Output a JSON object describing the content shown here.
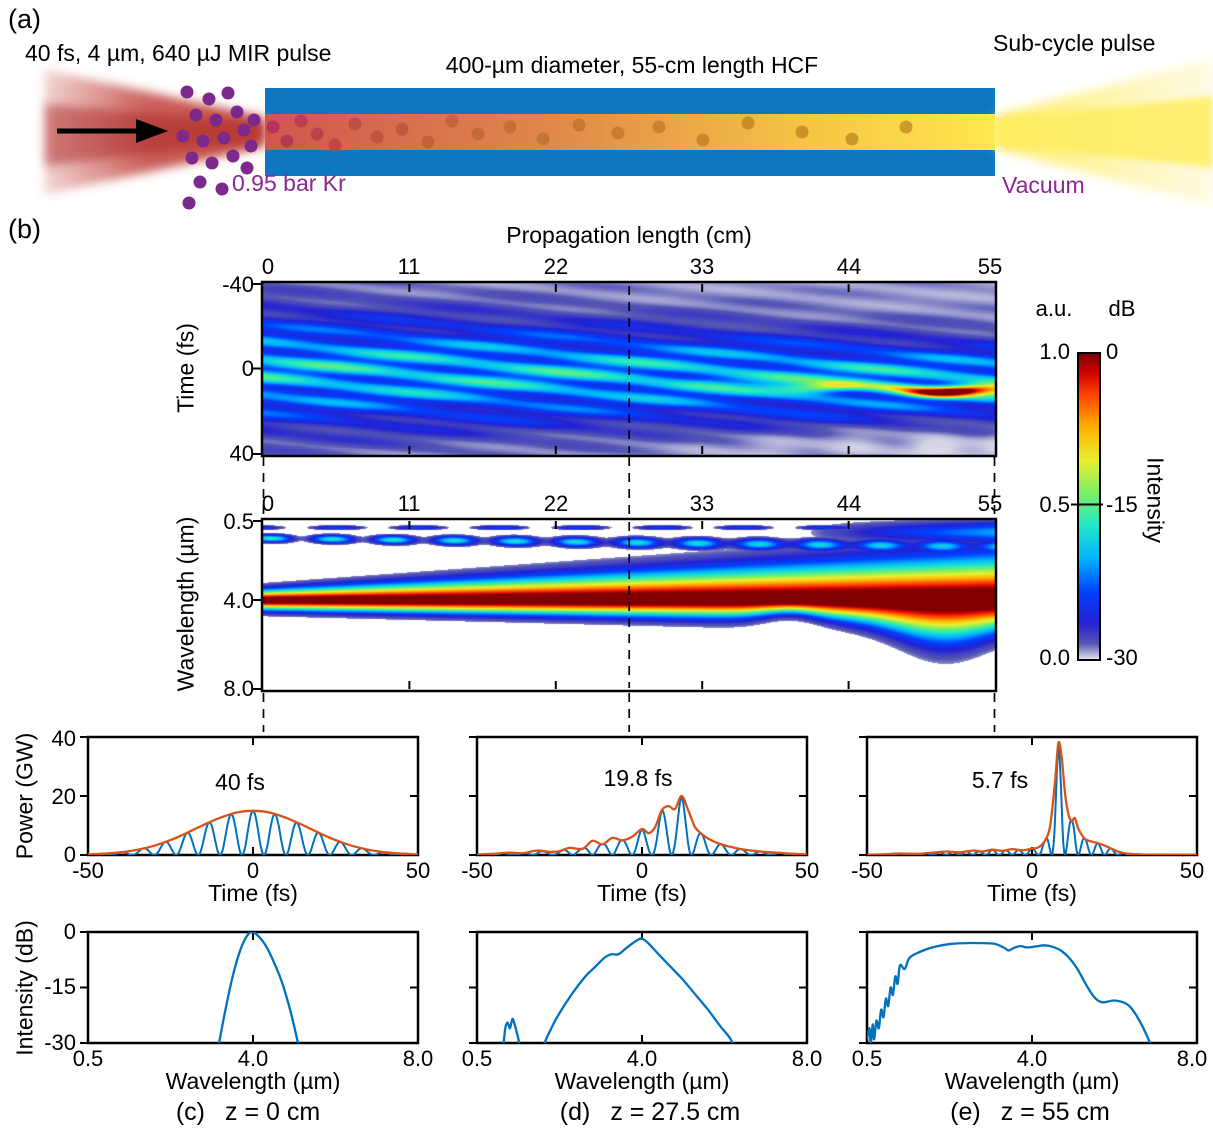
{
  "panel_a": {
    "label": "(a)",
    "pulse_label": "40 fs, 4 µm, 640 µJ MIR pulse",
    "fiber_label": "400-µm diameter, 55-cm length HCF",
    "output_label": "Sub-cycle pulse",
    "gas_label": "0.95 bar Kr",
    "vacuum_label": "Vacuum",
    "colors": {
      "fiber_blue": "#0d78bf",
      "gas_purple": "#8b2791"
    }
  },
  "panel_b": {
    "label": "(b)",
    "xaxis_title": "Propagation length (cm)",
    "xticks": [
      "0",
      "11",
      "22",
      "33",
      "44",
      "55"
    ],
    "time_map": {
      "ylabel": "Time (fs)",
      "yticks": [
        "-40",
        "0",
        "40"
      ]
    },
    "wavelength_map": {
      "ylabel": "Wavelength (µm)",
      "yticks": [
        "0.5",
        "4.0",
        "8.0"
      ]
    },
    "colorbar": {
      "left_unit": "a.u.",
      "right_unit": "dB",
      "left_ticks": [
        "1.0",
        "0.5",
        "0.0"
      ],
      "right_ticks": [
        "0",
        "-15",
        "-30"
      ],
      "title": "Intensity"
    }
  },
  "bottom_axes": {
    "power_ylabel": "Power (GW)",
    "power_yticks": [
      "40",
      "20",
      "0"
    ],
    "time_xlabel": "Time (fs)",
    "time_xticks": [
      "-50",
      "0",
      "50"
    ],
    "intensity_ylabel": "Intensity (dB)",
    "intensity_yticks": [
      "0",
      "-15",
      "-30"
    ],
    "wavelength_xlabel": "Wavelength (µm)",
    "wavelength_xticks": [
      "0.5",
      "4.0",
      "8.0"
    ]
  },
  "annotations": {
    "c": "40 fs",
    "d": "19.8 fs",
    "e": "5.7 fs"
  },
  "captions": [
    {
      "label": "(c)",
      "z": "z = 0 cm"
    },
    {
      "label": "(d)",
      "z": "z = 27.5 cm"
    },
    {
      "label": "(e)",
      "z": "z = 55 cm"
    }
  ],
  "chart_data": {
    "colors": {
      "carrier_blue": "#0072bd",
      "envelope_orange": "#d95319"
    },
    "maps": [
      {
        "id": "time_evolution",
        "type": "heatmap",
        "title": "Propagation length (cm)",
        "xlabel": "Propagation length (cm)",
        "ylabel": "Time (fs)",
        "xrange": [
          0,
          55
        ],
        "yrange": [
          -40,
          40
        ],
        "colormap": "jet with light-gray floor",
        "intensity_scale": "a.u. 0-1 / dB -30-0",
        "description": "Broad 40 fs pulse with tilted interference fringes self-compresses; bright red soliton streak forms near t=+8 fs after z=30 cm; pale shock region below the streak at exit."
      },
      {
        "id": "spectral_evolution",
        "type": "heatmap",
        "xlabel": "Propagation length (cm)",
        "ylabel": "Wavelength (µm)",
        "xrange": [
          0,
          55
        ],
        "yrange": [
          0.5,
          8.0
        ],
        "colormap": "jet on white background",
        "description": "Narrow band at 4 µm broadens toward short wavelengths along propagation; dispersive-wave blobs near 0.8-1.2 µm; long-wavelength lobe appears near z=45-55 cm."
      }
    ],
    "power_time": {
      "type": "line",
      "xlabel": "Time (fs)",
      "ylabel": "Power (GW)",
      "xlim": [
        -50,
        50
      ],
      "ylim": [
        0,
        40
      ],
      "panels": [
        {
          "id": "c",
          "z": "z = 0 cm",
          "duration": "40 fs",
          "carrier_period_fs": 6.65,
          "carrier_center_fs": 0,
          "envelope_t": [
            -50,
            -45,
            -40,
            -35,
            -30,
            -25,
            -20,
            -15,
            -10,
            -5,
            0,
            5,
            10,
            15,
            20,
            25,
            30,
            35,
            40,
            45,
            50
          ],
          "envelope_gw": [
            0.2,
            0.45,
            0.93,
            1.78,
            3.13,
            5.05,
            7.5,
            10.2,
            12.6,
            14.4,
            15,
            14.4,
            12.6,
            10.2,
            7.5,
            5.05,
            3.13,
            1.78,
            0.93,
            0.45,
            0.2
          ]
        },
        {
          "id": "d",
          "z": "z = 27.5 cm",
          "duration": "19.8 fs",
          "carrier_period_fs": 6.0,
          "carrier_center_fs": 12,
          "envelope_t": [
            -50,
            -45,
            -40,
            -36,
            -32,
            -28,
            -25,
            -22,
            -18,
            -15,
            -12,
            -9,
            -6,
            -3,
            0,
            2,
            4,
            6,
            8,
            10,
            12,
            14,
            16,
            18,
            20,
            23,
            26,
            30,
            34,
            38,
            42,
            46,
            50
          ],
          "envelope_gw": [
            0.15,
            0.4,
            0.8,
            0.6,
            1.5,
            1.1,
            1.3,
            2.4,
            2.1,
            4.8,
            3.6,
            5.8,
            5.0,
            6.2,
            8.8,
            7.4,
            9.5,
            15.2,
            16.6,
            15.6,
            20,
            15.2,
            9.6,
            7.2,
            5.6,
            4.0,
            3.0,
            2.0,
            1.4,
            1.0,
            0.7,
            0.4,
            0.2
          ]
        },
        {
          "id": "e",
          "z": "z = 55 cm",
          "duration": "5.7 fs",
          "carrier_period_fs": 4.0,
          "carrier_center_fs": 8,
          "envelope_t": [
            -50,
            -45,
            -40,
            -35,
            -30,
            -26,
            -22,
            -18,
            -15,
            -12,
            -9,
            -6,
            -3,
            0,
            2,
            4,
            5.5,
            7,
            8,
            9,
            10,
            11,
            12,
            13,
            14,
            16,
            18,
            20,
            22,
            24,
            26,
            28,
            31,
            35,
            40,
            45,
            50
          ],
          "envelope_gw": [
            0.1,
            0.25,
            0.5,
            0.4,
            0.8,
            1.2,
            0.9,
            1.5,
            1.2,
            1.8,
            1.4,
            2.0,
            1.6,
            2.2,
            2.6,
            5,
            10,
            25,
            38,
            33,
            21,
            14,
            11.5,
            12.5,
            9,
            5.5,
            4.6,
            4.0,
            3.2,
            2.2,
            1.2,
            0.6,
            0.3,
            0.15,
            0.1,
            0.05,
            0.03
          ]
        }
      ]
    },
    "spectra": {
      "type": "line",
      "xlabel": "Wavelength (µm)",
      "ylabel": "Intensity (dB)",
      "xlim": [
        0.5,
        8.0
      ],
      "ylim": [
        -30,
        0
      ],
      "panels": [
        {
          "id": "c",
          "z": "z = 0 cm",
          "points": [
            [
              3.25,
              -32
            ],
            [
              3.4,
              -22
            ],
            [
              3.55,
              -13
            ],
            [
              3.7,
              -6
            ],
            [
              3.85,
              -1.5
            ],
            [
              3.97,
              0
            ],
            [
              4.1,
              -0.8
            ],
            [
              4.3,
              -3.5
            ],
            [
              4.5,
              -8
            ],
            [
              4.7,
              -13.5
            ],
            [
              4.9,
              -21
            ],
            [
              5.05,
              -28
            ],
            [
              5.15,
              -33
            ]
          ]
        },
        {
          "id": "d",
          "z": "z = 27.5 cm",
          "points": [
            [
              1.05,
              -32
            ],
            [
              1.1,
              -26
            ],
            [
              1.15,
              -24.5
            ],
            [
              1.2,
              -26
            ],
            [
              1.25,
              -23.5
            ],
            [
              1.3,
              -25
            ],
            [
              1.38,
              -29
            ],
            [
              1.45,
              -33
            ],
            [
              1.8,
              -33
            ],
            [
              2.0,
              -28
            ],
            [
              2.2,
              -23
            ],
            [
              2.5,
              -17
            ],
            [
              2.8,
              -12
            ],
            [
              3.0,
              -9.5
            ],
            [
              3.2,
              -7
            ],
            [
              3.35,
              -6
            ],
            [
              3.5,
              -6
            ],
            [
              3.7,
              -4
            ],
            [
              3.9,
              -2.2
            ],
            [
              4.0,
              -1.8
            ],
            [
              4.15,
              -3
            ],
            [
              4.4,
              -6
            ],
            [
              4.7,
              -9.5
            ],
            [
              5.0,
              -13
            ],
            [
              5.3,
              -17
            ],
            [
              5.6,
              -21
            ],
            [
              5.9,
              -25.5
            ],
            [
              6.15,
              -29
            ],
            [
              6.3,
              -33
            ]
          ]
        },
        {
          "id": "e",
          "z": "z = 55 cm",
          "points": [
            [
              0.5,
              -29
            ],
            [
              0.55,
              -26
            ],
            [
              0.58,
              -30
            ],
            [
              0.62,
              -25
            ],
            [
              0.65,
              -29
            ],
            [
              0.7,
              -24
            ],
            [
              0.75,
              -26
            ],
            [
              0.8,
              -21
            ],
            [
              0.85,
              -23
            ],
            [
              0.9,
              -18
            ],
            [
              0.95,
              -20
            ],
            [
              1.0,
              -15
            ],
            [
              1.05,
              -17
            ],
            [
              1.1,
              -12
            ],
            [
              1.15,
              -14
            ],
            [
              1.2,
              -9
            ],
            [
              1.3,
              -10
            ],
            [
              1.4,
              -7
            ],
            [
              1.6,
              -5.5
            ],
            [
              1.8,
              -4.5
            ],
            [
              2.0,
              -3.8
            ],
            [
              2.3,
              -3.2
            ],
            [
              2.6,
              -3.0
            ],
            [
              2.9,
              -3.0
            ],
            [
              3.2,
              -3.2
            ],
            [
              3.4,
              -4.2
            ],
            [
              3.5,
              -5.0
            ],
            [
              3.6,
              -4.4
            ],
            [
              3.75,
              -3.8
            ],
            [
              3.9,
              -4.2
            ],
            [
              4.1,
              -3.9
            ],
            [
              4.3,
              -3.6
            ],
            [
              4.5,
              -4.0
            ],
            [
              4.7,
              -5.0
            ],
            [
              4.9,
              -7
            ],
            [
              5.1,
              -10
            ],
            [
              5.3,
              -14
            ],
            [
              5.5,
              -17.5
            ],
            [
              5.7,
              -19
            ],
            [
              6.0,
              -18.5
            ],
            [
              6.3,
              -19.5
            ],
            [
              6.5,
              -22
            ],
            [
              6.7,
              -26
            ],
            [
              6.9,
              -31
            ]
          ]
        }
      ]
    }
  }
}
